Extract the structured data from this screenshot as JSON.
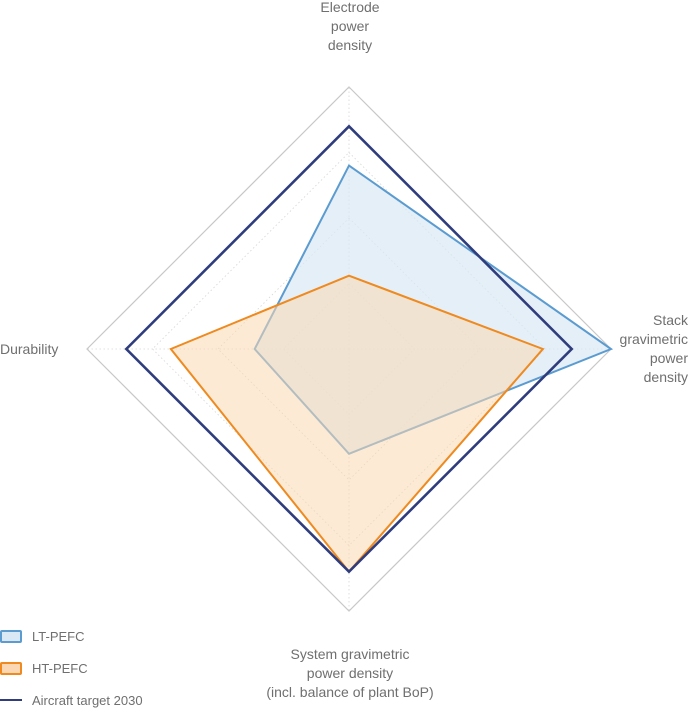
{
  "chart_data": {
    "type": "radar",
    "axes": [
      {
        "lines": [
          "Electrode",
          "power",
          "density"
        ]
      },
      {
        "lines": [
          "Stack",
          "gravimetric",
          "power",
          "density"
        ]
      },
      {
        "lines": [
          "System gravimetric",
          "power density",
          "(incl. balance of plant BoP)"
        ]
      },
      {
        "lines": [
          "Durability"
        ]
      }
    ],
    "rmax": 1,
    "grid_levels": [
      0.25,
      0.5,
      0.75
    ],
    "series": [
      {
        "name": "LT-PEFC",
        "values": [
          0.7,
          1.0,
          0.4,
          0.36
        ],
        "stroke": "#5b9bd0",
        "fill": "#dae8f5",
        "fill_opacity": 0.7,
        "legend_type": "box"
      },
      {
        "name": "HT-PEFC",
        "values": [
          0.28,
          0.74,
          0.85,
          0.68
        ],
        "stroke": "#ee8a1f",
        "fill": "#fbd8b3",
        "fill_opacity": 0.55,
        "legend_type": "box"
      },
      {
        "name": "Aircraft target 2030",
        "values": [
          0.85,
          0.85,
          0.85,
          0.85
        ],
        "stroke": "#2f3d7c",
        "fill": "none",
        "fill_opacity": 0,
        "legend_type": "line"
      }
    ],
    "legend_position": "bottom-left",
    "grid": true
  }
}
